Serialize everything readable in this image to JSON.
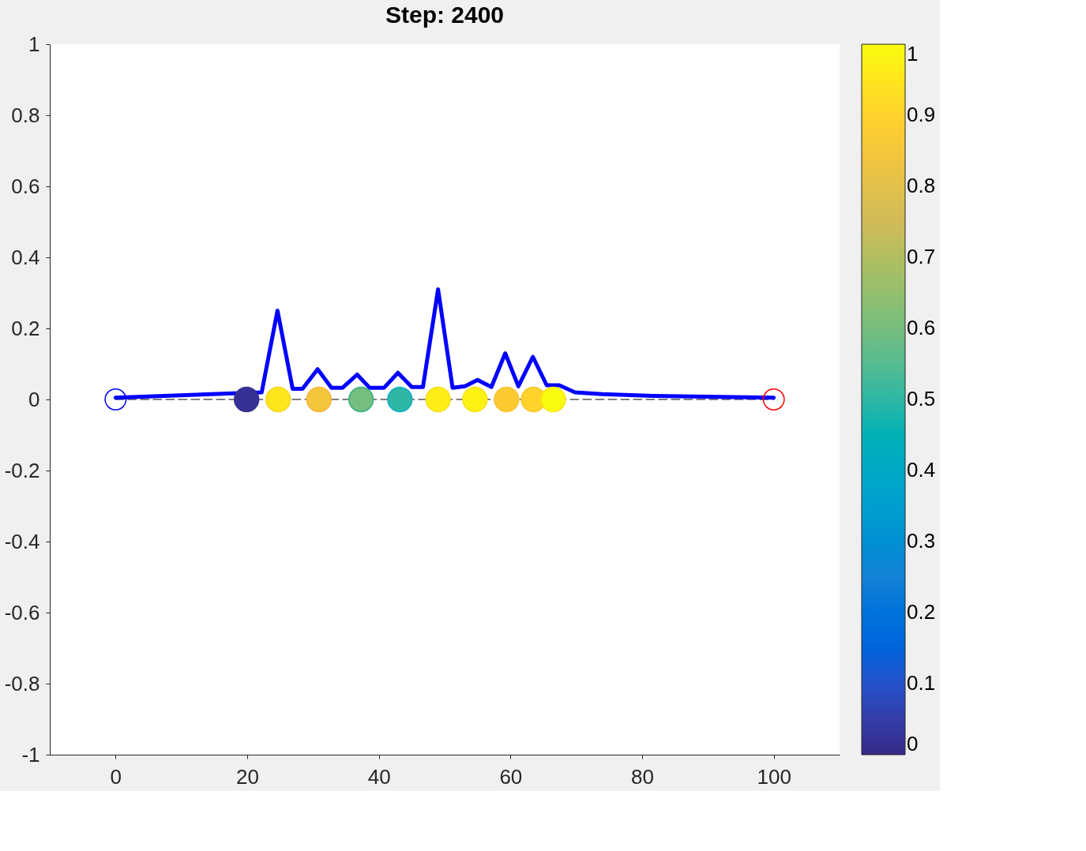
{
  "chart_data": {
    "type": "line",
    "title": "Step: 2400",
    "xlim": [
      -10,
      110
    ],
    "xticks": [
      0,
      20,
      40,
      60,
      80,
      100
    ],
    "ylim": [
      -1,
      1
    ],
    "yticks": [
      -1,
      -0.8,
      -0.6,
      -0.4,
      -0.2,
      0,
      0.2,
      0.4,
      0.6,
      0.8,
      1
    ],
    "clim": [
      0,
      1
    ],
    "cticks": [
      0,
      0.1,
      0.2,
      0.3,
      0.4,
      0.5,
      0.6,
      0.7,
      0.8,
      0.9,
      1
    ],
    "grid": false,
    "series": [
      {
        "line_style": "dashed",
        "color": "#808080",
        "x": [
          0,
          100
        ],
        "values": [
          0,
          0
        ]
      },
      {
        "line_style": "solid",
        "color": "#0000ff",
        "x": [
          0,
          22.2,
          24.6,
          26.9,
          28.4,
          30.7,
          32.8,
          34.5,
          36.7,
          38.6,
          40.8,
          42.9,
          45,
          46.7,
          49,
          51.2,
          53.1,
          55,
          57.1,
          59.2,
          61.2,
          63.4,
          65.5,
          67.4,
          69.8,
          73.9,
          81.7,
          100
        ],
        "values": [
          0.005,
          0.02,
          0.25,
          0.03,
          0.03,
          0.085,
          0.033,
          0.033,
          0.07,
          0.033,
          0.033,
          0.075,
          0.035,
          0.035,
          0.31,
          0.033,
          0.037,
          0.055,
          0.035,
          0.13,
          0.037,
          0.12,
          0.04,
          0.04,
          0.02,
          0.015,
          0.01,
          0.005
        ]
      },
      {
        "type": "scatter",
        "marker": "circle",
        "x": [
          19.9,
          24.7,
          30.9,
          37.3,
          43.2,
          49,
          54.6,
          59.4,
          63.5,
          66.5
        ],
        "values": [
          0,
          0,
          0,
          0,
          0,
          0,
          0,
          0,
          0,
          0
        ],
        "cvalues": [
          0.02,
          0.95,
          0.85,
          0.6,
          0.5,
          0.97,
          0.98,
          0.88,
          0.9,
          1.0
        ],
        "colors": [
          "#3b2f8f",
          "#f2d51e",
          "#f9b33a",
          "#35b186",
          "#0fb0c8",
          "#f4df16",
          "#f7e214",
          "#f9c231",
          "#f5c82c",
          "#f9e70c"
        ]
      },
      {
        "type": "scatter",
        "marker": "circle",
        "color": "#0000ff",
        "x": [
          0
        ],
        "values": [
          0
        ]
      },
      {
        "type": "scatter",
        "marker": "circle",
        "color": "#ff0000",
        "x": [
          100
        ],
        "values": [
          0
        ]
      }
    ]
  }
}
